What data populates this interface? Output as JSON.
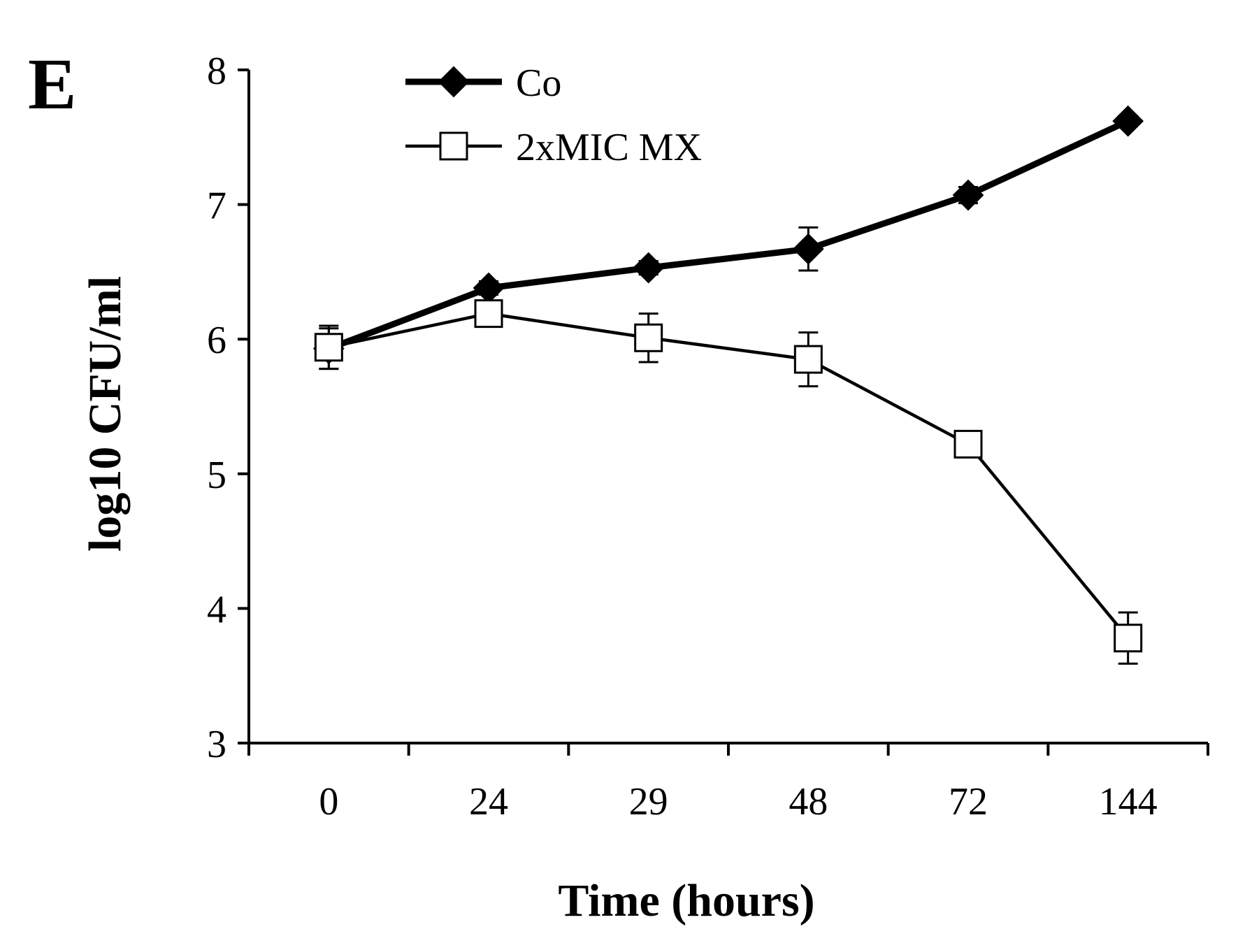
{
  "chart_data": {
    "type": "line",
    "panel_label": "E",
    "categories": [
      "0",
      "24",
      "29",
      "48",
      "72",
      "144"
    ],
    "xlabel": "Time (hours)",
    "ylabel": "log10 CFU/ml",
    "ylim": [
      3,
      8
    ],
    "yticks": [
      3,
      4,
      5,
      6,
      7,
      8
    ],
    "grid": false,
    "legend_position": "top-left",
    "series": [
      {
        "name": "Co",
        "marker": "filled-diamond",
        "line": "thick",
        "color": "#000000",
        "values": [
          5.93,
          6.38,
          6.53,
          6.67,
          7.07,
          7.62
        ],
        "errors": [
          0.15,
          0.05,
          0.05,
          0.16,
          0.06,
          0.04
        ]
      },
      {
        "name": "2xMIC MX",
        "marker": "open-square",
        "line": "thin",
        "color": "#000000",
        "values": [
          5.94,
          6.19,
          6.01,
          5.85,
          5.22,
          3.78
        ],
        "errors": [
          0.16,
          0.04,
          0.18,
          0.2,
          0.04,
          0.19
        ]
      }
    ]
  }
}
